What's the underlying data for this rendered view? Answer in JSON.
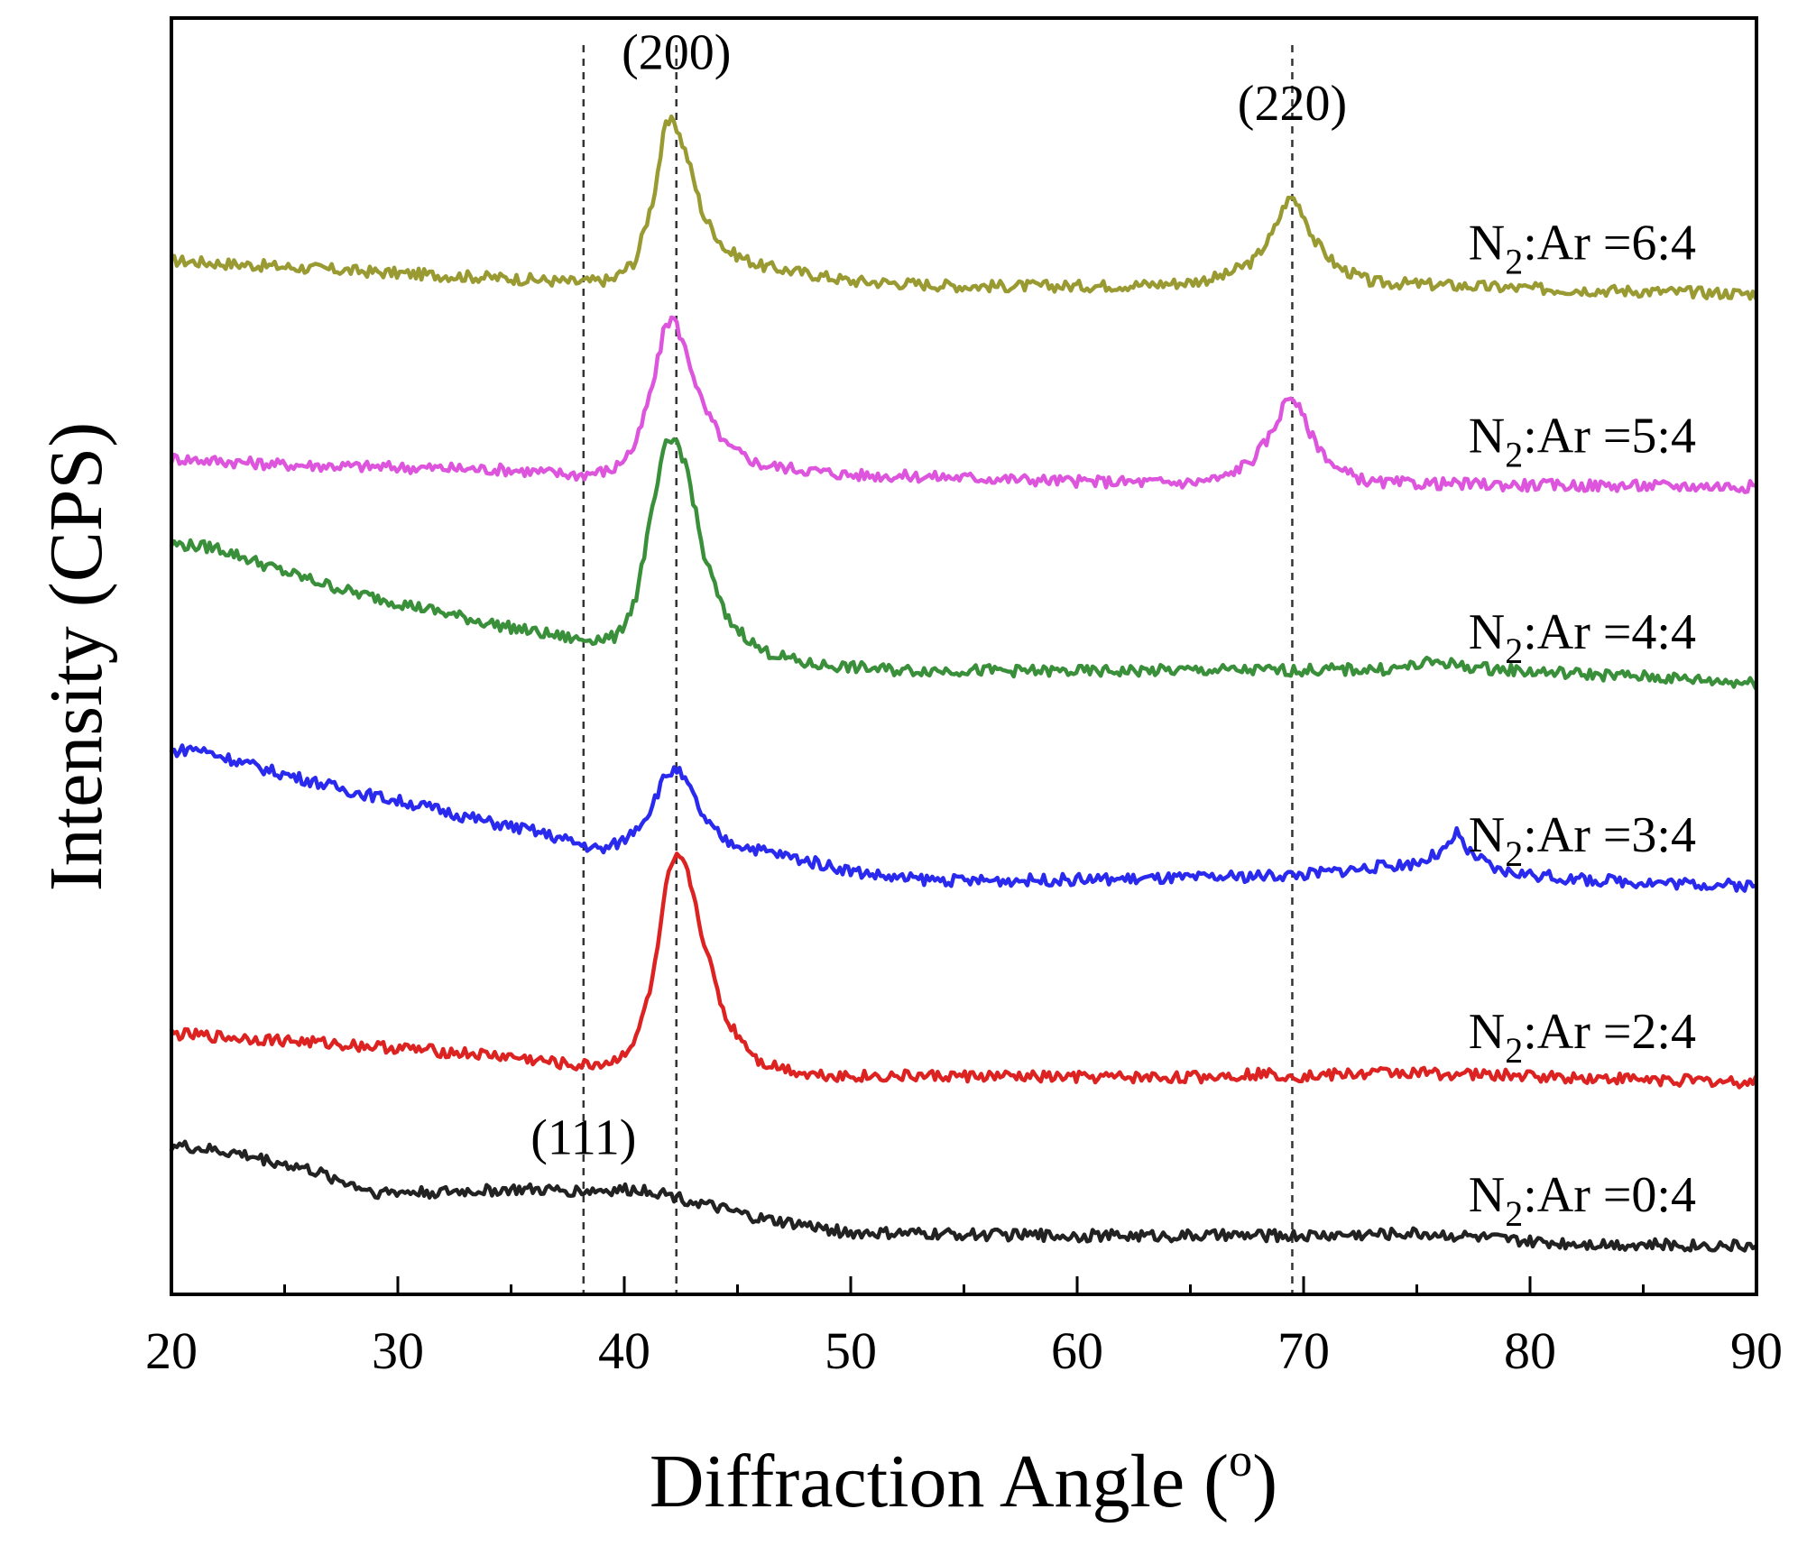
{
  "chart_data": {
    "type": "line",
    "title": "",
    "xlabel": "Diffraction Angle (o)",
    "xlabel_parts": {
      "main": "Diffraction Angle (",
      "sup": "o",
      "close": ")"
    },
    "ylabel": "Intensity (CPS)",
    "xlim": [
      20,
      90
    ],
    "xticks": [
      20,
      30,
      40,
      50,
      60,
      70,
      80,
      90
    ],
    "yticks": [],
    "ylim": [
      0,
      100
    ],
    "grid": false,
    "reference_lines": [
      38.2,
      42.3,
      69.5
    ],
    "peak_labels": [
      {
        "text": "(200)",
        "x": 42.3,
        "y": 96
      },
      {
        "text": "(220)",
        "x": 69.5,
        "y": 92
      },
      {
        "text": "(111)",
        "x": 38.2,
        "y": 11
      }
    ],
    "series": [
      {
        "name": "N2:Ar =6:4",
        "label": {
          "base": "N",
          "sub": "2",
          "rest": ":Ar =6:4"
        },
        "color": "#9a9a33",
        "points": [
          [
            20,
            81
          ],
          [
            25,
            80.5
          ],
          [
            30,
            80
          ],
          [
            35,
            79.6
          ],
          [
            38,
            79.3
          ],
          [
            39.5,
            79.5
          ],
          [
            40.5,
            81
          ],
          [
            41.3,
            86
          ],
          [
            41.8,
            91.5
          ],
          [
            42.2,
            92
          ],
          [
            42.8,
            89
          ],
          [
            43.5,
            84.5
          ],
          [
            44.5,
            81.8
          ],
          [
            46,
            80.6
          ],
          [
            50,
            79.4
          ],
          [
            55,
            79
          ],
          [
            60,
            79
          ],
          [
            63,
            79.1
          ],
          [
            65,
            79.3
          ],
          [
            66.5,
            79.8
          ],
          [
            67.8,
            81
          ],
          [
            68.6,
            83
          ],
          [
            69.2,
            85.5
          ],
          [
            69.5,
            86
          ],
          [
            69.9,
            85
          ],
          [
            70.5,
            82.5
          ],
          [
            71.5,
            80.5
          ],
          [
            73,
            79.3
          ],
          [
            80,
            78.8
          ],
          [
            90,
            78.4
          ]
        ]
      },
      {
        "name": "N2:Ar =5:4",
        "label": {
          "base": "N",
          "sub": "2",
          "rest": ":Ar =5:4"
        },
        "color": "#dd55dd",
        "points": [
          [
            20,
            65.5
          ],
          [
            25,
            65
          ],
          [
            30,
            64.8
          ],
          [
            35,
            64.6
          ],
          [
            38,
            64.2
          ],
          [
            39.5,
            64.6
          ],
          [
            40.5,
            66.5
          ],
          [
            41.3,
            71.5
          ],
          [
            41.8,
            76
          ],
          [
            42.2,
            76.5
          ],
          [
            42.8,
            73.5
          ],
          [
            43.5,
            69.5
          ],
          [
            44.5,
            66.5
          ],
          [
            46,
            65
          ],
          [
            50,
            64.2
          ],
          [
            55,
            64
          ],
          [
            60,
            63.7
          ],
          [
            65,
            63.6
          ],
          [
            66.5,
            64
          ],
          [
            67.8,
            65.5
          ],
          [
            68.6,
            67.5
          ],
          [
            69.2,
            70
          ],
          [
            69.5,
            70.5
          ],
          [
            69.9,
            69
          ],
          [
            70.5,
            66.8
          ],
          [
            71.5,
            64.6
          ],
          [
            73,
            63.6
          ],
          [
            80,
            63.4
          ],
          [
            90,
            63.3
          ]
        ]
      },
      {
        "name": "N2:Ar =4:4",
        "label": {
          "base": "N",
          "sub": "2",
          "rest": ":Ar =4:4"
        },
        "color": "#3a8f3a",
        "points": [
          [
            20,
            58.8
          ],
          [
            22,
            58.5
          ],
          [
            25,
            56.6
          ],
          [
            28,
            55
          ],
          [
            31,
            53.8
          ],
          [
            34,
            52.6
          ],
          [
            36,
            51.9
          ],
          [
            38,
            51.3
          ],
          [
            39.7,
            51.5
          ],
          [
            40.5,
            54.5
          ],
          [
            41.2,
            61
          ],
          [
            41.8,
            66.5
          ],
          [
            42.3,
            67
          ],
          [
            42.8,
            64.5
          ],
          [
            43.5,
            58
          ],
          [
            44.5,
            53
          ],
          [
            46,
            50.5
          ],
          [
            48,
            49.4
          ],
          [
            52,
            48.9
          ],
          [
            55,
            48.9
          ],
          [
            60,
            48.8
          ],
          [
            65,
            48.9
          ],
          [
            70,
            48.9
          ],
          [
            74,
            49
          ],
          [
            76,
            49.6
          ],
          [
            77,
            49.2
          ],
          [
            80,
            48.8
          ],
          [
            85,
            48.4
          ],
          [
            90,
            47.9
          ]
        ]
      },
      {
        "name": "N2:Ar =3:4",
        "label": {
          "base": "N",
          "sub": "2",
          "rest": ":Ar =3:4"
        },
        "color": "#2a2aee",
        "points": [
          [
            20,
            42.5
          ],
          [
            21,
            42.8
          ],
          [
            24,
            41.2
          ],
          [
            28,
            39.4
          ],
          [
            31,
            38.3
          ],
          [
            34,
            37
          ],
          [
            36,
            36.3
          ],
          [
            38,
            35.3
          ],
          [
            39,
            34.8
          ],
          [
            40,
            35.6
          ],
          [
            41,
            37.5
          ],
          [
            41.8,
            40.6
          ],
          [
            42.3,
            41.2
          ],
          [
            42.9,
            39.6
          ],
          [
            43.6,
            37
          ],
          [
            44.5,
            35.5
          ],
          [
            46,
            34.8
          ],
          [
            48,
            34
          ],
          [
            50,
            33.2
          ],
          [
            52,
            32.6
          ],
          [
            55,
            32.4
          ],
          [
            60,
            32.5
          ],
          [
            65,
            32.6
          ],
          [
            70,
            32.9
          ],
          [
            75,
            33.8
          ],
          [
            76.3,
            34.8
          ],
          [
            76.8,
            36.2
          ],
          [
            77.2,
            34.8
          ],
          [
            78.5,
            33.2
          ],
          [
            82,
            32.5
          ],
          [
            90,
            32
          ]
        ]
      },
      {
        "name": "N2:Ar =2:4",
        "label": {
          "base": "N",
          "sub": "2",
          "rest": ":Ar =2:4"
        },
        "color": "#dd2222",
        "points": [
          [
            20,
            20.4
          ],
          [
            25,
            19.9
          ],
          [
            30,
            19.3
          ],
          [
            35,
            18.6
          ],
          [
            38,
            17.9
          ],
          [
            39.5,
            18.2
          ],
          [
            40.5,
            19.8
          ],
          [
            41.3,
            25
          ],
          [
            41.9,
            32.5
          ],
          [
            42.4,
            34.5
          ],
          [
            42.9,
            32.5
          ],
          [
            43.6,
            27
          ],
          [
            44.5,
            21.5
          ],
          [
            46,
            18.2
          ],
          [
            48,
            17.3
          ],
          [
            50,
            17.1
          ],
          [
            55,
            17.1
          ],
          [
            60,
            17
          ],
          [
            65,
            17
          ],
          [
            68,
            17.3
          ],
          [
            70,
            17.1
          ],
          [
            74,
            17.4
          ],
          [
            78,
            17.2
          ],
          [
            82,
            17
          ],
          [
            86,
            16.8
          ],
          [
            90,
            16.6
          ]
        ]
      },
      {
        "name": "N2:Ar =0:4",
        "label": {
          "base": "N",
          "sub": "2",
          "rest": ":Ar =0:4"
        },
        "color": "#222222",
        "points": [
          [
            20,
            11.7
          ],
          [
            23,
            11
          ],
          [
            26,
            9.8
          ],
          [
            28,
            8.6
          ],
          [
            29,
            8
          ],
          [
            32,
            8
          ],
          [
            35,
            8.2
          ],
          [
            38,
            8.1
          ],
          [
            41,
            8.2
          ],
          [
            42,
            7.8
          ],
          [
            44,
            6.8
          ],
          [
            46,
            5.9
          ],
          [
            48,
            5.4
          ],
          [
            50,
            4.8
          ],
          [
            55,
            4.7
          ],
          [
            60,
            4.6
          ],
          [
            65,
            4.6
          ],
          [
            70,
            4.6
          ],
          [
            75,
            4.8
          ],
          [
            77,
            4.6
          ],
          [
            80,
            4.1
          ],
          [
            85,
            3.9
          ],
          [
            90,
            3.8
          ]
        ]
      }
    ]
  }
}
